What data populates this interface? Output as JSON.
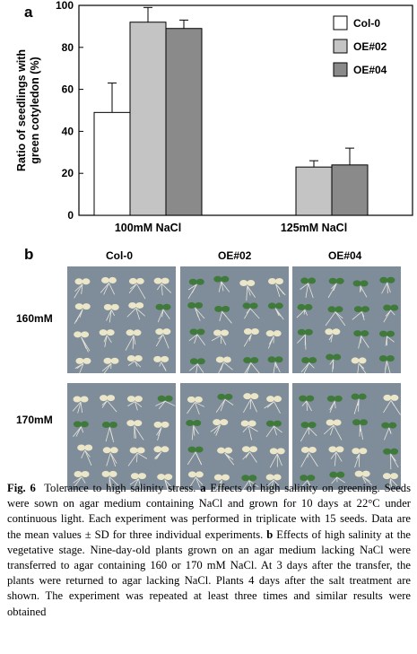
{
  "panel_a_letter": "a",
  "panel_b_letter": "b",
  "chart_data": {
    "type": "bar",
    "title": "",
    "ylabel": "Ratio of seedlings with green cotyledon (%)",
    "ylim": [
      0,
      100
    ],
    "yticks": [
      0,
      20,
      40,
      60,
      80,
      100
    ],
    "categories": [
      "100mM NaCl",
      "125mM NaCl"
    ],
    "series": [
      {
        "name": "Col-0",
        "color": "#ffffff",
        "values": [
          49,
          0
        ],
        "errors": [
          14,
          0
        ]
      },
      {
        "name": "OE#02",
        "color": "#c4c4c4",
        "values": [
          92,
          23
        ],
        "errors": [
          7,
          3
        ]
      },
      {
        "name": "OE#04",
        "color": "#8a8a8a",
        "values": [
          89,
          24
        ],
        "errors": [
          4,
          8
        ]
      }
    ],
    "legend_position": "top-right",
    "grid": false
  },
  "photos": {
    "columns": [
      "Col-0",
      "OE#02",
      "OE#04"
    ],
    "rows": [
      "160mM",
      "170mM"
    ]
  },
  "caption": {
    "fig_label": "Fig. 6",
    "title": "Tolerance to high salinity stress.",
    "a_label": "a",
    "a_text": "Effects of high salinity on greening. Seeds were sown on agar medium containing NaCl and grown for 10 days at 22°C under continuous light. Each experiment was performed in triplicate with 15 seeds. Data are the mean values ± SD for three individual experiments.",
    "b_label": "b",
    "b_text": "Effects of high salinity at the vegetative stage. Nine-day-old plants grown on an agar medium lacking NaCl were transferred to agar containing 160 or 170 mM NaCl. At 3 days after the transfer, the plants were returned to agar lacking NaCl. Plants 4 days after the salt treatment are shown. The experiment was repeated at least three times and similar results were obtained"
  }
}
